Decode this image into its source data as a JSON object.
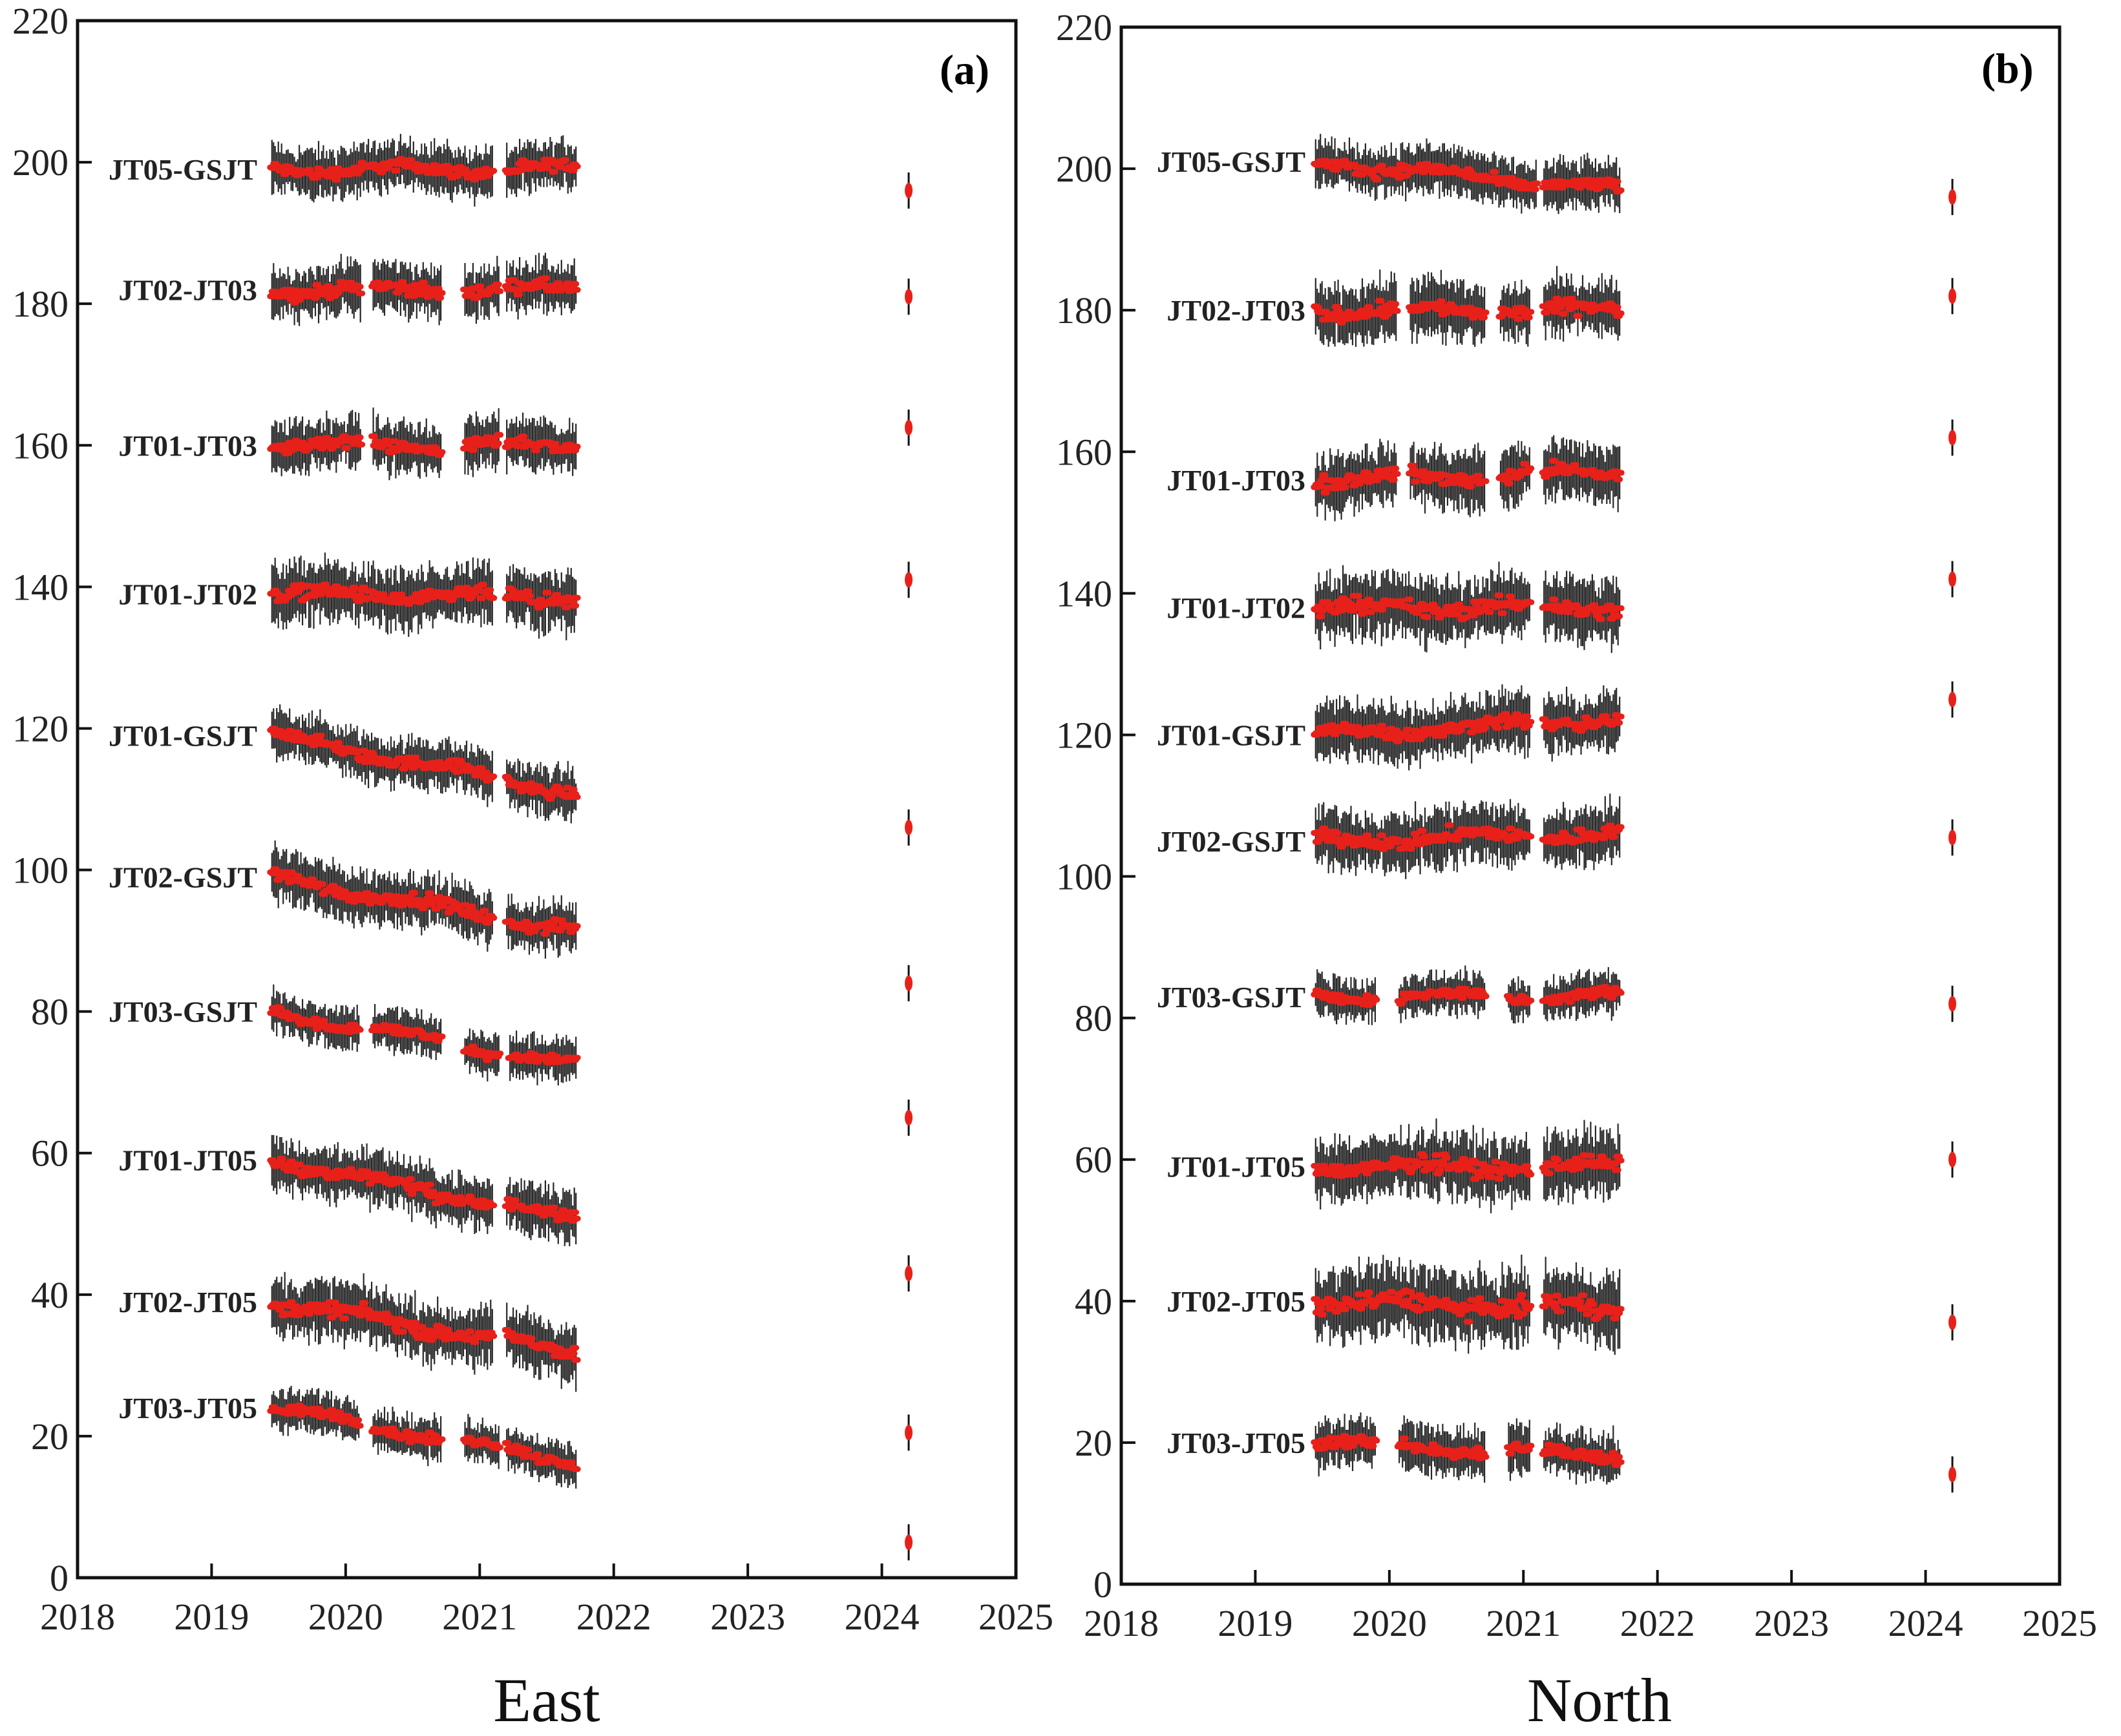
{
  "chart_data": [
    {
      "type": "scatter",
      "panel": "(a)",
      "xlabel": "East",
      "ylabel": "",
      "xlim": [
        2018,
        2025
      ],
      "ylim": [
        0,
        220
      ],
      "xticks": [
        2018,
        2019,
        2020,
        2021,
        2022,
        2023,
        2024,
        2025
      ],
      "yticks": [
        0,
        20,
        40,
        60,
        80,
        100,
        120,
        140,
        160,
        180,
        200,
        220
      ],
      "grid": false,
      "series": [
        {
          "name": "JT05-GSJT",
          "offset": 199,
          "start": 2019.45,
          "slope": 0.0,
          "end": 2021.72,
          "gaps": [
            [
              2021.1,
              2021.2
            ]
          ],
          "spread": 1.5,
          "error_bar": 196
        },
        {
          "name": "JT02-JT03",
          "offset": 182,
          "start": 2019.45,
          "slope": 0.0,
          "end": 2021.72,
          "gaps": [
            [
              2020.12,
              2020.2
            ],
            [
              2020.72,
              2020.88
            ],
            [
              2021.15,
              2021.2
            ]
          ],
          "spread": 1.6,
          "error_bar": 181
        },
        {
          "name": "JT01-JT03",
          "offset": 160,
          "start": 2019.45,
          "slope": 0.0,
          "end": 2021.72,
          "gaps": [
            [
              2020.12,
              2020.2
            ],
            [
              2020.72,
              2020.88
            ],
            [
              2021.15,
              2021.2
            ]
          ],
          "spread": 1.6,
          "error_bar": 162.5
        },
        {
          "name": "JT01-JT02",
          "offset": 139,
          "start": 2019.45,
          "slope": -0.3,
          "end": 2021.72,
          "gaps": [
            [
              2021.1,
              2021.2
            ]
          ],
          "spread": 1.8,
          "error_bar": 141
        },
        {
          "name": "JT01-GSJT",
          "offset": 119,
          "start": 2019.45,
          "slope": -3.6,
          "end": 2021.72,
          "gaps": [
            [
              2021.1,
              2021.2
            ]
          ],
          "spread": 1.5,
          "error_bar": 106
        },
        {
          "name": "JT02-GSJT",
          "offset": 99,
          "start": 2019.45,
          "slope": -3.4,
          "end": 2021.72,
          "gaps": [
            [
              2021.1,
              2021.2
            ]
          ],
          "spread": 1.6,
          "error_bar": 84
        },
        {
          "name": "JT03-GSJT",
          "offset": 80,
          "start": 2019.45,
          "slope": -3.4,
          "end": 2021.72,
          "gaps": [
            [
              2020.1,
              2020.2
            ],
            [
              2020.72,
              2020.88
            ],
            [
              2021.15,
              2021.22
            ]
          ],
          "spread": 1.3,
          "error_bar": 65
        },
        {
          "name": "JT01-JT05",
          "offset": 59,
          "start": 2019.45,
          "slope": -3.7,
          "end": 2021.72,
          "gaps": [
            [
              2021.1,
              2021.2
            ]
          ],
          "spread": 1.6,
          "error_bar": 43
        },
        {
          "name": "JT02-JT05",
          "offset": 39,
          "start": 2019.45,
          "slope": -3.2,
          "end": 2021.72,
          "gaps": [
            [
              2021.1,
              2021.2
            ]
          ],
          "spread": 1.8,
          "error_bar": 20.5
        },
        {
          "name": "JT03-JT05",
          "offset": 24,
          "start": 2019.45,
          "slope": -3.4,
          "end": 2021.72,
          "gaps": [
            [
              2020.1,
              2020.2
            ],
            [
              2020.72,
              2020.88
            ],
            [
              2021.15,
              2021.2
            ]
          ],
          "spread": 1.3,
          "error_bar": 5
        }
      ]
    },
    {
      "type": "scatter",
      "panel": "(b)",
      "xlabel": "North",
      "ylabel": "",
      "xlim": [
        2018,
        2025
      ],
      "ylim": [
        0,
        220
      ],
      "xticks": [
        2018,
        2019,
        2020,
        2021,
        2022,
        2023,
        2024,
        2025
      ],
      "yticks": [
        0,
        20,
        40,
        60,
        80,
        100,
        120,
        140,
        160,
        180,
        200,
        220
      ],
      "grid": false,
      "series": [
        {
          "name": "JT05-GSJT",
          "offset": 201,
          "start": 2019.45,
          "slope": -1.8,
          "end": 2021.72,
          "gaps": [
            [
              2021.1,
              2021.15
            ]
          ],
          "spread": 1.5,
          "error_bar": 196
        },
        {
          "name": "JT02-JT03",
          "offset": 180,
          "start": 2019.45,
          "slope": 0.0,
          "end": 2021.72,
          "gaps": [
            [
              2020.05,
              2020.15
            ],
            [
              2020.72,
              2020.82
            ],
            [
              2021.05,
              2021.15
            ]
          ],
          "spread": 1.8,
          "error_bar": 182
        },
        {
          "name": "JT01-JT03",
          "offset": 156,
          "start": 2019.45,
          "slope": 0.5,
          "end": 2021.72,
          "gaps": [
            [
              2020.05,
              2020.15
            ],
            [
              2020.72,
              2020.82
            ],
            [
              2021.05,
              2021.15
            ]
          ],
          "spread": 1.8,
          "error_bar": 162
        },
        {
          "name": "JT01-JT02",
          "offset": 138,
          "start": 2019.45,
          "slope": 0.0,
          "end": 2021.72,
          "gaps": [
            [
              2021.05,
              2021.15
            ]
          ],
          "spread": 2.0,
          "error_bar": 142
        },
        {
          "name": "JT01-GSJT",
          "offset": 120,
          "start": 2019.45,
          "slope": 1.0,
          "end": 2021.72,
          "gaps": [
            [
              2021.05,
              2021.15
            ]
          ],
          "spread": 1.8,
          "error_bar": 125
        },
        {
          "name": "JT02-GSJT",
          "offset": 105,
          "start": 2019.45,
          "slope": 0.5,
          "end": 2021.72,
          "gaps": [
            [
              2021.05,
              2021.15
            ]
          ],
          "spread": 1.8,
          "error_bar": 105.5
        },
        {
          "name": "JT03-GSJT",
          "offset": 83,
          "start": 2019.45,
          "slope": 0.0,
          "end": 2021.72,
          "gaps": [
            [
              2019.9,
              2020.07
            ],
            [
              2020.72,
              2020.88
            ],
            [
              2021.05,
              2021.15
            ]
          ],
          "spread": 1.3,
          "error_bar": 82
        },
        {
          "name": "JT01-JT05",
          "offset": 59,
          "start": 2019.45,
          "slope": 0.0,
          "end": 2021.72,
          "gaps": [
            [
              2021.05,
              2021.15
            ]
          ],
          "spread": 2.0,
          "error_bar": 60
        },
        {
          "name": "JT02-JT05",
          "offset": 40,
          "start": 2019.45,
          "slope": -0.5,
          "end": 2021.72,
          "gaps": [
            [
              2021.05,
              2021.15
            ]
          ],
          "spread": 2.2,
          "error_bar": 37
        },
        {
          "name": "JT03-JT05",
          "offset": 20,
          "start": 2019.45,
          "slope": -0.8,
          "end": 2021.72,
          "gaps": [
            [
              2019.9,
              2020.07
            ],
            [
              2020.72,
              2020.88
            ],
            [
              2021.05,
              2021.15
            ]
          ],
          "spread": 1.5,
          "error_bar": 15.5
        }
      ]
    }
  ],
  "colors": {
    "data_points": "#e8201a",
    "error_bars": "#111111",
    "frame": "#111111"
  }
}
